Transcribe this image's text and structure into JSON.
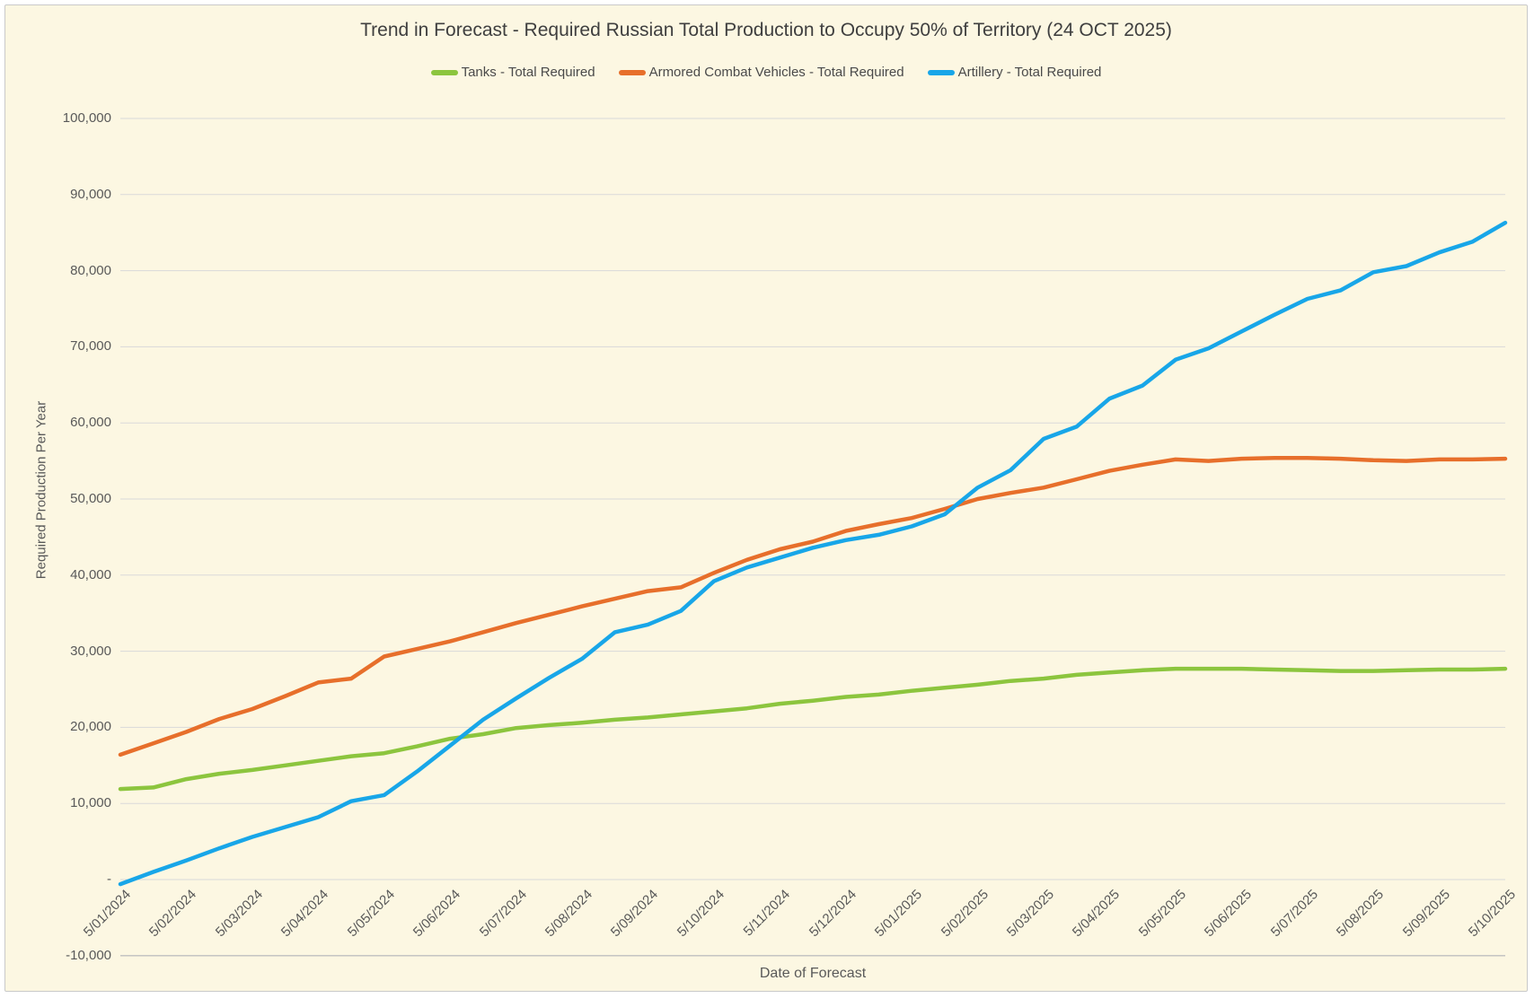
{
  "title": {
    "text": "Trend in Forecast - Required Russian Total Production to Occupy 50% of Territory (24 OCT 2025)",
    "color": "#3F3F3F"
  },
  "colors": {
    "canvas_background": "#FCF7E2",
    "canvas_border": "#C9C9C9",
    "gridline": "#D9D9D9",
    "axis_line": "#BFBFBF",
    "tick_text": "#595959",
    "legend_text": "#4A4A4A"
  },
  "chart_data": {
    "type": "line",
    "title": "Trend in Forecast - Required Russian Total Production to Occupy 50% of Territory (24 OCT 2025)",
    "xlabel": "Date of Forecast",
    "ylabel": "Required Production Per Year",
    "ylim": [
      -10000,
      100000
    ],
    "y_major_unit": 10000,
    "grid": "horizontal",
    "legend_position": "top",
    "points_per_tick_interval": 2,
    "x_tick_labels": [
      "5/01/2024",
      "5/02/2024",
      "5/03/2024",
      "5/04/2024",
      "5/05/2024",
      "5/06/2024",
      "5/07/2024",
      "5/08/2024",
      "5/09/2024",
      "5/10/2024",
      "5/11/2024",
      "5/12/2024",
      "5/01/2025",
      "5/02/2025",
      "5/03/2025",
      "5/04/2025",
      "5/05/2025",
      "5/06/2025",
      "5/07/2025",
      "5/08/2025",
      "5/09/2025",
      "5/10/2025"
    ],
    "y_tick_labels": [
      {
        "value": 100000,
        "label": "100,000"
      },
      {
        "value": 90000,
        "label": "90,000"
      },
      {
        "value": 80000,
        "label": "80,000"
      },
      {
        "value": 70000,
        "label": "70,000"
      },
      {
        "value": 60000,
        "label": "60,000"
      },
      {
        "value": 50000,
        "label": "50,000"
      },
      {
        "value": 40000,
        "label": "40,000"
      },
      {
        "value": 30000,
        "label": "30,000"
      },
      {
        "value": 20000,
        "label": "20,000"
      },
      {
        "value": 10000,
        "label": "10,000"
      },
      {
        "value": 0,
        "label": "-"
      },
      {
        "value": -10000,
        "label": "-10,000"
      }
    ],
    "series": [
      {
        "name": "Tanks - Total Required",
        "color": "#8CC53E",
        "values": [
          11900,
          12100,
          13200,
          13900,
          14400,
          15000,
          15600,
          16200,
          16600,
          17500,
          18500,
          19100,
          19900,
          20300,
          20600,
          21000,
          21300,
          21700,
          22100,
          22500,
          23100,
          23500,
          24000,
          24300,
          24800,
          25200,
          25600,
          26100,
          26400,
          26900,
          27200,
          27500,
          27700,
          27700,
          27700,
          27600,
          27500,
          27400,
          27400,
          27500,
          27600,
          27600,
          27700
        ]
      },
      {
        "name": "Armored Combat Vehicles - Total Required",
        "color": "#E76F2B",
        "values": [
          16400,
          17900,
          19400,
          21100,
          22400,
          24100,
          25900,
          26400,
          29300,
          30300,
          31300,
          32500,
          33700,
          34800,
          35900,
          36900,
          37900,
          38400,
          40300,
          42000,
          43400,
          44400,
          45800,
          46700,
          47500,
          48700,
          50000,
          50800,
          51500,
          52600,
          53700,
          54500,
          55200,
          55000,
          55300,
          55400,
          55400,
          55300,
          55100,
          55000,
          55200,
          55200,
          55300
        ]
      },
      {
        "name": "Artillery - Total Required",
        "color": "#18A6E8",
        "values": [
          -600,
          1000,
          2500,
          4100,
          5600,
          6900,
          8200,
          10300,
          11100,
          14200,
          17600,
          21000,
          23800,
          26500,
          29000,
          32500,
          33500,
          35300,
          39200,
          41000,
          42300,
          43600,
          44600,
          45300,
          46400,
          48000,
          51500,
          53800,
          57900,
          59500,
          63200,
          64900,
          68300,
          69800,
          72000,
          74200,
          76300,
          77400,
          79800,
          80600,
          82400,
          83800,
          86300
        ]
      }
    ]
  }
}
